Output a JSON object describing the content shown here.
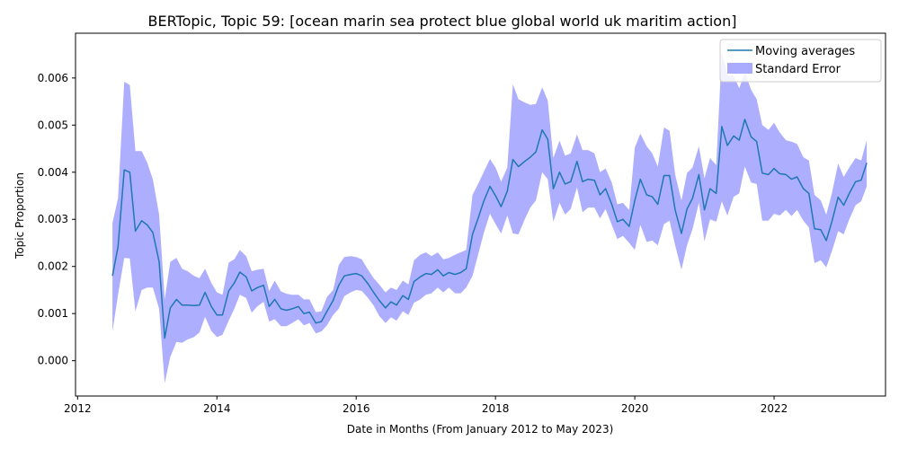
{
  "chart_data": {
    "type": "line",
    "title": "BERTopic, Topic 59: [ocean marin sea protect blue global world uk maritim action]",
    "xlabel": "Date in Months (From January 2012 to May 2023)",
    "ylabel": "Topic Proportion",
    "xlim": [
      2011.97,
      2023.6
    ],
    "ylim": [
      -0.00075,
      0.00695
    ],
    "x_ticks": [
      2012,
      2014,
      2016,
      2018,
      2020,
      2022
    ],
    "y_ticks": [
      0.0,
      0.001,
      0.002,
      0.003,
      0.004,
      0.005,
      0.006
    ],
    "y_tick_labels": [
      "0.000",
      "0.001",
      "0.002",
      "0.003",
      "0.004",
      "0.005",
      "0.006"
    ],
    "grid": false,
    "legend_position": "top-right",
    "x": [
      2012.5,
      2012.58,
      2012.67,
      2012.75,
      2012.83,
      2012.92,
      2013.0,
      2013.08,
      2013.17,
      2013.25,
      2013.33,
      2013.42,
      2013.5,
      2013.58,
      2013.67,
      2013.75,
      2013.83,
      2013.92,
      2014.0,
      2014.08,
      2014.17,
      2014.25,
      2014.33,
      2014.42,
      2014.5,
      2014.58,
      2014.67,
      2014.75,
      2014.83,
      2014.92,
      2015.0,
      2015.08,
      2015.17,
      2015.25,
      2015.33,
      2015.42,
      2015.5,
      2015.58,
      2015.67,
      2015.75,
      2015.83,
      2015.92,
      2016.0,
      2016.08,
      2016.17,
      2016.25,
      2016.33,
      2016.42,
      2016.5,
      2016.58,
      2016.67,
      2016.75,
      2016.83,
      2016.92,
      2017.0,
      2017.08,
      2017.17,
      2017.25,
      2017.33,
      2017.42,
      2017.5,
      2017.58,
      2017.67,
      2017.75,
      2017.83,
      2017.92,
      2018.0,
      2018.08,
      2018.17,
      2018.25,
      2018.33,
      2018.42,
      2018.5,
      2018.58,
      2018.67,
      2018.75,
      2018.83,
      2018.92,
      2019.0,
      2019.08,
      2019.17,
      2019.25,
      2019.33,
      2019.42,
      2019.5,
      2019.58,
      2019.67,
      2019.75,
      2019.83,
      2019.92,
      2020.0,
      2020.08,
      2020.17,
      2020.25,
      2020.33,
      2020.42,
      2020.5,
      2020.58,
      2020.67,
      2020.75,
      2020.83,
      2020.92,
      2021.0,
      2021.08,
      2021.17,
      2021.25,
      2021.33,
      2021.42,
      2021.5,
      2021.58,
      2021.67,
      2021.75,
      2021.83,
      2021.92,
      2022.0,
      2022.08,
      2022.17,
      2022.25,
      2022.33,
      2022.42,
      2022.5,
      2022.58,
      2022.67,
      2022.75,
      2022.83,
      2022.92,
      2023.0,
      2023.08,
      2023.17,
      2023.25,
      2023.33
    ],
    "series": [
      {
        "name": "Moving averages",
        "color": "#1f77b4",
        "values": [
          0.0018,
          0.00242,
          0.00405,
          0.004,
          0.00275,
          0.00297,
          0.00288,
          0.00272,
          0.0021,
          0.00048,
          0.00112,
          0.0013,
          0.00118,
          0.00118,
          0.00117,
          0.00118,
          0.00145,
          0.00115,
          0.00097,
          0.00097,
          0.00148,
          0.00165,
          0.00188,
          0.00178,
          0.00148,
          0.00155,
          0.0016,
          0.00115,
          0.0013,
          0.0011,
          0.00107,
          0.0011,
          0.00115,
          0.001,
          0.00103,
          0.0008,
          0.00083,
          0.00105,
          0.00128,
          0.0016,
          0.0018,
          0.00183,
          0.00185,
          0.0018,
          0.00163,
          0.00145,
          0.00128,
          0.00112,
          0.00125,
          0.00118,
          0.00138,
          0.0013,
          0.00168,
          0.00178,
          0.00185,
          0.00183,
          0.00193,
          0.0018,
          0.00187,
          0.00183,
          0.00187,
          0.00195,
          0.00268,
          0.00302,
          0.00338,
          0.0037,
          0.0035,
          0.00327,
          0.0036,
          0.00427,
          0.00412,
          0.00423,
          0.00432,
          0.00443,
          0.0049,
          0.0047,
          0.00365,
          0.004,
          0.00375,
          0.0038,
          0.00423,
          0.0038,
          0.00385,
          0.00383,
          0.00352,
          0.00365,
          0.00332,
          0.00295,
          0.003,
          0.00285,
          0.0034,
          0.00385,
          0.00352,
          0.00348,
          0.00332,
          0.00393,
          0.00393,
          0.0032,
          0.0027,
          0.00322,
          0.00345,
          0.00395,
          0.0032,
          0.00365,
          0.00355,
          0.00497,
          0.00457,
          0.00477,
          0.00468,
          0.00512,
          0.00475,
          0.00465,
          0.00398,
          0.00395,
          0.00408,
          0.00397,
          0.00395,
          0.00385,
          0.0039,
          0.00365,
          0.00355,
          0.0028,
          0.00278,
          0.00255,
          0.00295,
          0.00347,
          0.0033,
          0.00355,
          0.0038,
          0.00383,
          0.0042
        ]
      }
    ],
    "band": {
      "name": "Standard Error",
      "color": "#aaaaff",
      "upper": [
        0.00292,
        0.00345,
        0.00592,
        0.00585,
        0.00445,
        0.00445,
        0.0042,
        0.00385,
        0.0031,
        0.0013,
        0.0021,
        0.00218,
        0.00195,
        0.0019,
        0.0018,
        0.00175,
        0.00195,
        0.00165,
        0.00145,
        0.0014,
        0.00208,
        0.00215,
        0.00235,
        0.00222,
        0.0019,
        0.00193,
        0.00195,
        0.00148,
        0.0017,
        0.00147,
        0.00142,
        0.0014,
        0.0014,
        0.0013,
        0.0013,
        0.00103,
        0.00105,
        0.00135,
        0.0015,
        0.00203,
        0.0022,
        0.00222,
        0.0022,
        0.00215,
        0.00193,
        0.00175,
        0.00162,
        0.00145,
        0.00155,
        0.0015,
        0.0017,
        0.00162,
        0.00213,
        0.00225,
        0.0023,
        0.00222,
        0.0023,
        0.00215,
        0.00218,
        0.00225,
        0.0023,
        0.00235,
        0.00352,
        0.00375,
        0.004,
        0.00428,
        0.0041,
        0.0038,
        0.0041,
        0.00587,
        0.00555,
        0.00548,
        0.00543,
        0.00545,
        0.0058,
        0.00552,
        0.0043,
        0.00467,
        0.00435,
        0.0044,
        0.0048,
        0.00447,
        0.00447,
        0.0044,
        0.004,
        0.00408,
        0.00378,
        0.00332,
        0.00335,
        0.0032,
        0.00452,
        0.00482,
        0.00455,
        0.0044,
        0.00412,
        0.00495,
        0.00488,
        0.00395,
        0.0034,
        0.00398,
        0.0041,
        0.00455,
        0.00387,
        0.0043,
        0.00415,
        0.00655,
        0.00605,
        0.00605,
        0.00578,
        0.00612,
        0.00575,
        0.00555,
        0.005,
        0.0049,
        0.00505,
        0.00485,
        0.00468,
        0.00465,
        0.0046,
        0.00432,
        0.00425,
        0.00352,
        0.0034,
        0.0031,
        0.00355,
        0.00418,
        0.0039,
        0.0041,
        0.0043,
        0.00425,
        0.00468
      ],
      "lower": [
        0.00062,
        0.0014,
        0.00218,
        0.00217,
        0.00105,
        0.0015,
        0.00155,
        0.00155,
        0.0011,
        -0.00048,
        8e-05,
        0.0004,
        0.00038,
        0.00045,
        0.0005,
        0.0006,
        0.00093,
        0.00063,
        0.0005,
        0.00055,
        0.00085,
        0.0011,
        0.0014,
        0.00133,
        0.00102,
        0.00115,
        0.00125,
        0.00083,
        0.00088,
        0.00073,
        0.00073,
        0.0008,
        0.00088,
        0.00075,
        0.0008,
        0.00058,
        0.00062,
        0.00075,
        0.00097,
        0.0011,
        0.00137,
        0.00145,
        0.0015,
        0.00148,
        0.00133,
        0.00117,
        0.00095,
        0.0008,
        0.00092,
        0.00085,
        0.00105,
        0.00097,
        0.00123,
        0.0013,
        0.0014,
        0.00143,
        0.00155,
        0.00145,
        0.00155,
        0.00143,
        0.00143,
        0.00155,
        0.0018,
        0.00225,
        0.0027,
        0.00312,
        0.0029,
        0.0027,
        0.00308,
        0.0027,
        0.00268,
        0.003,
        0.00325,
        0.0034,
        0.004,
        0.00385,
        0.00295,
        0.00335,
        0.0031,
        0.00322,
        0.00368,
        0.00315,
        0.00325,
        0.00325,
        0.00302,
        0.00322,
        0.00288,
        0.00258,
        0.00265,
        0.0025,
        0.00235,
        0.00288,
        0.00252,
        0.00255,
        0.00245,
        0.0029,
        0.00297,
        0.00245,
        0.00193,
        0.00245,
        0.0028,
        0.00335,
        0.00253,
        0.003,
        0.00295,
        0.00338,
        0.00308,
        0.00348,
        0.00355,
        0.00412,
        0.00378,
        0.00375,
        0.00297,
        0.00297,
        0.00312,
        0.00308,
        0.0032,
        0.00307,
        0.0032,
        0.00297,
        0.00283,
        0.00207,
        0.00213,
        0.00198,
        0.00232,
        0.00275,
        0.00268,
        0.003,
        0.0033,
        0.00338,
        0.0037
      ]
    }
  }
}
